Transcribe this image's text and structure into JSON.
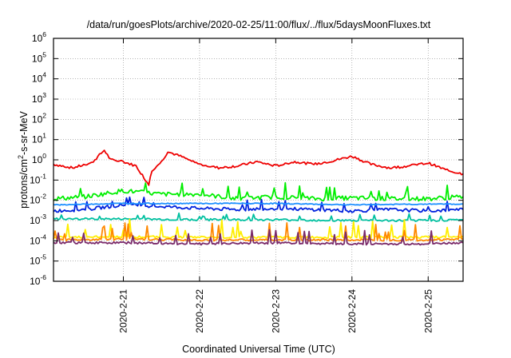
{
  "chart_data": {
    "type": "line",
    "title": "/data/run/goesPlots/archive/2020-02-25/11:00/flux/../flux/5daysMoonFluxes.txt",
    "xlabel": "Coordinated Universal Time (UTC)",
    "ylabel_parts": [
      "protons/cm",
      "2",
      "-s-sr-MeV"
    ],
    "y_scale": "log",
    "ylim": [
      1e-06,
      1000000.0
    ],
    "y_ticks": [
      {
        "base": "10",
        "exp": "-6"
      },
      {
        "base": "10",
        "exp": "-5"
      },
      {
        "base": "10",
        "exp": "-4"
      },
      {
        "base": "10",
        "exp": "-3"
      },
      {
        "base": "10",
        "exp": "-2"
      },
      {
        "base": "10",
        "exp": "-1"
      },
      {
        "base": "10",
        "exp": "0"
      },
      {
        "base": "10",
        "exp": "1"
      },
      {
        "base": "10",
        "exp": "2"
      },
      {
        "base": "10",
        "exp": "3"
      },
      {
        "base": "10",
        "exp": "4"
      },
      {
        "base": "10",
        "exp": "5"
      },
      {
        "base": "10",
        "exp": "6"
      }
    ],
    "xlim": [
      "2020-02-20T02:00",
      "2020-02-25T11:00"
    ],
    "x_ticks": [
      "2020-2-21",
      "2020-2-22",
      "2020-2-23",
      "2020-2-24",
      "2020-2-25"
    ],
    "x_tick_dates": [
      "2020-02-21",
      "2020-02-22",
      "2020-02-23",
      "2020-02-24",
      "2020-02-25"
    ],
    "grid": true,
    "series": [
      {
        "color": "#ee0000",
        "x": [
          "2020-02-20T02:00",
          "2020-02-20T08:00",
          "2020-02-20T14:00",
          "2020-02-20T18:00",
          "2020-02-20T20:00",
          "2020-02-21T00:00",
          "2020-02-21T04:00",
          "2020-02-21T08:00",
          "2020-02-21T09:00",
          "2020-02-21T12:00",
          "2020-02-21T14:00",
          "2020-02-21T18:00",
          "2020-02-22T00:00",
          "2020-02-22T06:00",
          "2020-02-22T12:00",
          "2020-02-22T18:00",
          "2020-02-23T00:00",
          "2020-02-23T06:00",
          "2020-02-23T12:00",
          "2020-02-23T18:00",
          "2020-02-24T00:00",
          "2020-02-24T06:00",
          "2020-02-24T12:00",
          "2020-02-24T18:00",
          "2020-02-25T00:00",
          "2020-02-25T06:00",
          "2020-02-25T11:00"
        ],
        "values": [
          0.6,
          0.4,
          0.7,
          3.0,
          1.0,
          0.8,
          0.5,
          0.06,
          0.3,
          0.8,
          2.5,
          1.5,
          0.6,
          0.4,
          0.5,
          0.8,
          0.5,
          0.8,
          0.6,
          0.9,
          1.5,
          0.6,
          0.4,
          0.5,
          0.7,
          0.3,
          0.2
        ]
      },
      {
        "color": "#00ee00",
        "x": [
          "2020-02-20T02:00",
          "2020-02-20T12:00",
          "2020-02-21T00:00",
          "2020-02-21T12:00",
          "2020-02-22T00:00",
          "2020-02-22T12:00",
          "2020-02-23T00:00",
          "2020-02-23T12:00",
          "2020-02-24T00:00",
          "2020-02-24T12:00",
          "2020-02-25T00:00",
          "2020-02-25T11:00"
        ],
        "values": [
          0.012,
          0.015,
          0.03,
          0.02,
          0.02,
          0.012,
          0.015,
          0.012,
          0.013,
          0.012,
          0.012,
          0.015
        ]
      },
      {
        "color": "#0022dd",
        "x": [
          "2020-02-20T02:00",
          "2020-02-20T12:00",
          "2020-02-21T00:00",
          "2020-02-21T12:00",
          "2020-02-22T00:00",
          "2020-02-22T12:00",
          "2020-02-23T00:00",
          "2020-02-23T12:00",
          "2020-02-24T00:00",
          "2020-02-24T12:00",
          "2020-02-25T00:00",
          "2020-02-25T11:00"
        ],
        "values": [
          0.003,
          0.0035,
          0.006,
          0.005,
          0.004,
          0.0035,
          0.004,
          0.0035,
          0.003,
          0.0035,
          0.003,
          0.0035
        ]
      },
      {
        "color": "#1e90ff",
        "x": [
          "2020-02-20T02:00",
          "2020-02-21T00:00",
          "2020-02-22T00:00",
          "2020-02-23T00:00",
          "2020-02-24T00:00",
          "2020-02-25T00:00",
          "2020-02-25T11:00"
        ],
        "values": [
          0.006,
          0.007,
          0.007,
          0.007,
          0.006,
          0.0065,
          0.0065
        ]
      },
      {
        "color": "#00c0a0",
        "x": [
          "2020-02-20T02:00",
          "2020-02-21T00:00",
          "2020-02-22T00:00",
          "2020-02-23T00:00",
          "2020-02-24T00:00",
          "2020-02-25T00:00",
          "2020-02-25T11:00"
        ],
        "values": [
          0.0012,
          0.0012,
          0.0011,
          0.0011,
          0.001,
          0.001,
          0.0011
        ]
      },
      {
        "color": "#ffee00",
        "x": [
          "2020-02-20T02:00",
          "2020-02-21T00:00",
          "2020-02-22T00:00",
          "2020-02-23T00:00",
          "2020-02-24T00:00",
          "2020-02-25T00:00",
          "2020-02-25T11:00"
        ],
        "values": [
          0.00015,
          0.00016,
          0.00015,
          0.00015,
          0.00015,
          0.00015,
          0.00016
        ]
      },
      {
        "color": "#ff8800",
        "x": [
          "2020-02-20T02:00",
          "2020-02-21T00:00",
          "2020-02-22T00:00",
          "2020-02-23T00:00",
          "2020-02-24T00:00",
          "2020-02-25T00:00",
          "2020-02-25T11:00"
        ],
        "values": [
          0.00011,
          0.00012,
          0.00011,
          0.00011,
          0.00011,
          0.00011,
          0.00012
        ]
      },
      {
        "color": "#7a2a6a",
        "x": [
          "2020-02-20T02:00",
          "2020-02-21T00:00",
          "2020-02-22T00:00",
          "2020-02-23T00:00",
          "2020-02-24T00:00",
          "2020-02-25T00:00",
          "2020-02-25T11:00"
        ],
        "values": [
          8e-05,
          8e-05,
          7e-05,
          8e-05,
          7e-05,
          7e-05,
          8e-05
        ]
      }
    ]
  }
}
